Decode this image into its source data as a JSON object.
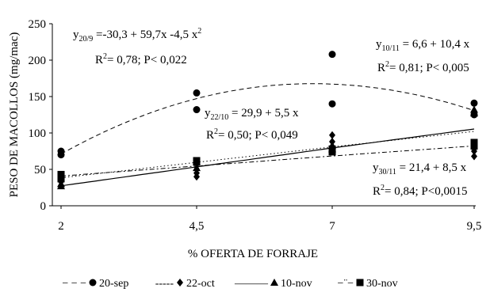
{
  "chart_data": {
    "type": "scatter",
    "xlabel": "% OFERTA DE FORRAJE",
    "ylabel": "PESO DE MACOLLOS (mg/mac)",
    "x": [
      2,
      4.5,
      7,
      9.5
    ],
    "x_tick_labels": [
      "2",
      "4,5",
      "7",
      "9,5"
    ],
    "ylim": [
      0,
      250
    ],
    "yticks": [
      0,
      50,
      100,
      150,
      200,
      250
    ],
    "series": [
      {
        "name": "20-sep",
        "marker": "circle",
        "line": "dashed",
        "points": [
          [
            2,
            75
          ],
          [
            2,
            70
          ],
          [
            4.5,
            155
          ],
          [
            4.5,
            132
          ],
          [
            7,
            208
          ],
          [
            7,
            140
          ],
          [
            9.5,
            141
          ],
          [
            9.5,
            125
          ]
        ],
        "fit": {
          "a": -30.3,
          "b": 59.7,
          "c": -4.5
        }
      },
      {
        "name": "22-oct",
        "marker": "diamond",
        "line": "dashdot",
        "points": [
          [
            2,
            40
          ],
          [
            2,
            33
          ],
          [
            4.5,
            45
          ],
          [
            4.5,
            40
          ],
          [
            7,
            97
          ],
          [
            7,
            88
          ],
          [
            7,
            80
          ],
          [
            9.5,
            75
          ],
          [
            9.5,
            68
          ]
        ],
        "fit": {
          "a": 29.9,
          "b": 5.5
        }
      },
      {
        "name": "10-nov",
        "marker": "triangle",
        "line": "solid",
        "points": [
          [
            2,
            30
          ],
          [
            2,
            27
          ],
          [
            4.5,
            60
          ],
          [
            4.5,
            52
          ],
          [
            7,
            83
          ],
          [
            7,
            78
          ],
          [
            9.5,
            132
          ],
          [
            9.5,
            127
          ]
        ],
        "fit": {
          "a": 6.6,
          "b": 10.4
        }
      },
      {
        "name": "30-nov",
        "marker": "square",
        "line": "dotted",
        "points": [
          [
            2,
            43
          ],
          [
            2,
            37
          ],
          [
            4.5,
            62
          ],
          [
            4.5,
            60
          ],
          [
            7,
            78
          ],
          [
            7,
            74
          ],
          [
            9.5,
            87
          ],
          [
            9.5,
            82
          ]
        ],
        "fit": {
          "a": 21.4,
          "b": 8.5
        }
      }
    ],
    "annotations": {
      "eq_20sep": {
        "sub": "20/9",
        "text": " =-30,3 + 59,7x -4,5 x",
        "sup": "2",
        "stats": "= 0,78; P< 0,022"
      },
      "eq_10nov": {
        "sub": "10/11",
        "text": " = 6,6 + 10,4 x",
        "stats": "= 0,81; P< 0,005"
      },
      "eq_22oct": {
        "sub": "22/10",
        "text": " = 29,9 + 5,5 x",
        "stats": "= 0,50;  P< 0,049"
      },
      "eq_30nov": {
        "sub": "30/11",
        "text": " = 21,4 + 8,5 x",
        "stats": "= 0,84; P<0,0015"
      },
      "y_sym": "y",
      "r_sym": "R",
      "r_sup": "2"
    },
    "legend": {
      "position": "bottom",
      "items": [
        {
          "label": "20-sep",
          "line_symbol": "− − −",
          "marker": "circle"
        },
        {
          "label": "22-oct",
          "line_symbol": "-----",
          "marker": "diamond"
        },
        {
          "label": "10-nov",
          "line_symbol": "———",
          "marker": "triangle"
        },
        {
          "label": "30-nov",
          "line_symbol": "−¨−",
          "marker": "square"
        }
      ]
    },
    "grid": false
  }
}
